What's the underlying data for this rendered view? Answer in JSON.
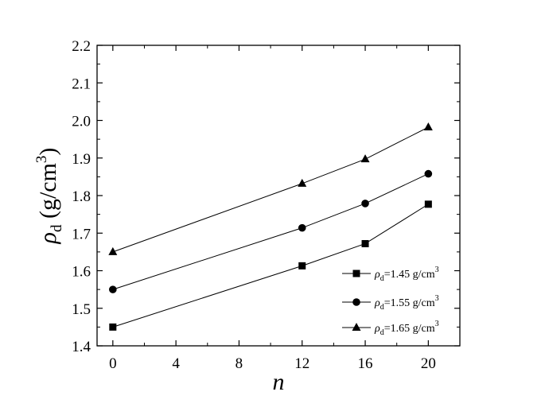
{
  "chart_data": {
    "type": "line",
    "xlabel": "n",
    "ylabel": {
      "symbol": "ρ",
      "subscript": "d",
      "unit_pre": " (g/cm",
      "unit_sup": "3",
      "unit_post": ")"
    },
    "xlim": [
      -1,
      22
    ],
    "ylim": [
      1.4,
      2.2
    ],
    "xticks": [
      "0",
      "4",
      "8",
      "12",
      "16",
      "20"
    ],
    "xtick_values": [
      0,
      4,
      8,
      12,
      16,
      20
    ],
    "yticks": [
      "1.4",
      "1.5",
      "1.6",
      "1.7",
      "1.8",
      "1.9",
      "2.0",
      "2.1",
      "2.2"
    ],
    "ytick_values": [
      1.4,
      1.5,
      1.6,
      1.7,
      1.8,
      1.9,
      2.0,
      2.1,
      2.2
    ],
    "grid": false,
    "legend_position": "bottom-right",
    "x": [
      0,
      12,
      16,
      20
    ],
    "series": [
      {
        "name": {
          "symbol": "ρ",
          "sub": "d",
          "text": "=1.45 g/cm",
          "sup": "3"
        },
        "marker": "square",
        "values": [
          1.45,
          1.613,
          1.672,
          1.777
        ]
      },
      {
        "name": {
          "symbol": "ρ",
          "sub": "d",
          "text": "=1.55 g/cm",
          "sup": "3"
        },
        "marker": "circle",
        "values": [
          1.55,
          1.714,
          1.779,
          1.858
        ]
      },
      {
        "name": {
          "symbol": "ρ",
          "sub": "d",
          "text": "=1.65 g/cm",
          "sup": "3"
        },
        "marker": "triangle",
        "values": [
          1.65,
          1.832,
          1.897,
          1.982
        ]
      }
    ],
    "colors": {
      "line": "#000000",
      "marker": "#000000",
      "axis": "#000000"
    }
  }
}
